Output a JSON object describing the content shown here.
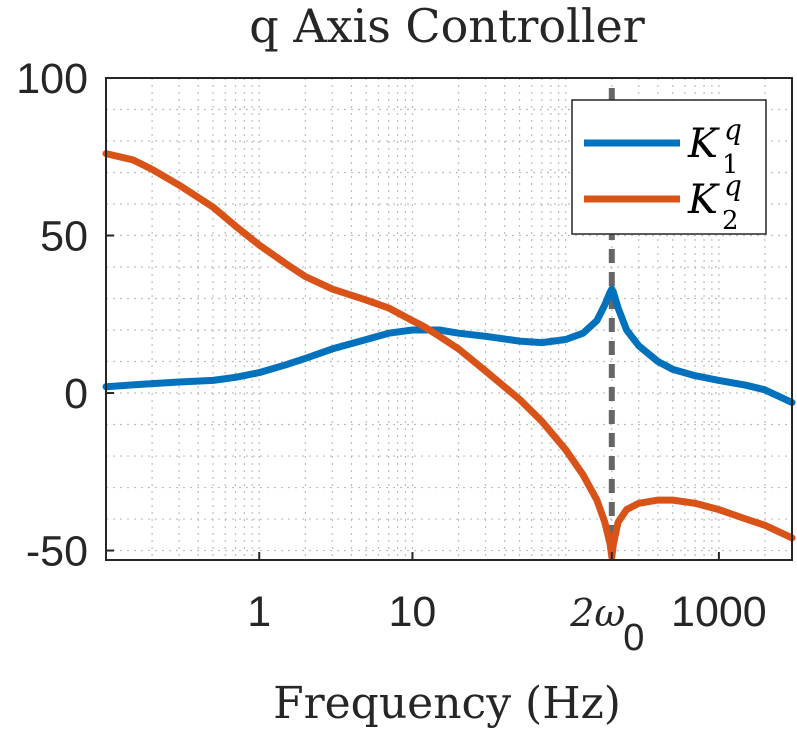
{
  "chart_data": {
    "type": "line",
    "title": "q Axis Controller",
    "xlabel": "Frequency (Hz)",
    "ylabel": "",
    "xscale": "log",
    "xlim": [
      0.1,
      3000
    ],
    "ylim": [
      -53,
      100
    ],
    "grid": true,
    "minor_grid": true,
    "legend_position": "top-right",
    "x_ticks": [
      {
        "value": 1,
        "label": "1"
      },
      {
        "value": 10,
        "label": "10"
      },
      {
        "value": 200,
        "label_symbol": "2ω",
        "label_sub": "0"
      },
      {
        "value": 1000,
        "label": "1000"
      }
    ],
    "y_ticks": [
      {
        "value": 100,
        "label": "100"
      },
      {
        "value": 50,
        "label": "50"
      },
      {
        "value": 0,
        "label": "0"
      },
      {
        "value": -50,
        "label": "-50"
      }
    ],
    "vertical_line": {
      "x": 200,
      "style": "dashed",
      "color": "#666666"
    },
    "series": [
      {
        "name": "K_1^q",
        "legend_symbol": "K",
        "legend_sup": "q",
        "legend_sub": "1",
        "color": "#0072BD",
        "x": [
          0.1,
          0.2,
          0.3,
          0.5,
          0.7,
          1,
          1.5,
          2,
          3,
          5,
          7,
          10,
          15,
          20,
          30,
          50,
          70,
          100,
          130,
          160,
          180,
          195,
          200,
          205,
          220,
          250,
          300,
          400,
          500,
          700,
          1000,
          1500,
          2000,
          3000
        ],
        "y": [
          2,
          3,
          3.5,
          4,
          5,
          6.5,
          9,
          11,
          14,
          17,
          19,
          20,
          20,
          19,
          18,
          16.5,
          16,
          17,
          19,
          23,
          28,
          32,
          33,
          32,
          27,
          20,
          15,
          10,
          7.5,
          5.5,
          4,
          2.5,
          1,
          -3
        ]
      },
      {
        "name": "K_2^q",
        "legend_symbol": "K",
        "legend_sup": "q",
        "legend_sub": "2",
        "color": "#D95319",
        "x": [
          0.1,
          0.15,
          0.2,
          0.3,
          0.5,
          0.7,
          1,
          1.5,
          2,
          3,
          5,
          7,
          10,
          12,
          15,
          20,
          30,
          50,
          70,
          100,
          130,
          160,
          180,
          195,
          200,
          205,
          220,
          250,
          300,
          400,
          500,
          700,
          1000,
          1500,
          2000,
          3000
        ],
        "y": [
          76,
          74,
          71,
          66,
          59,
          53,
          47,
          41,
          37,
          33,
          29.5,
          27,
          23,
          21,
          18,
          14,
          7,
          -2,
          -9,
          -18,
          -26,
          -34,
          -41,
          -48,
          -52,
          -48,
          -41,
          -37,
          -35,
          -34,
          -34,
          -35,
          -37,
          -40,
          -42,
          -46
        ]
      }
    ]
  }
}
